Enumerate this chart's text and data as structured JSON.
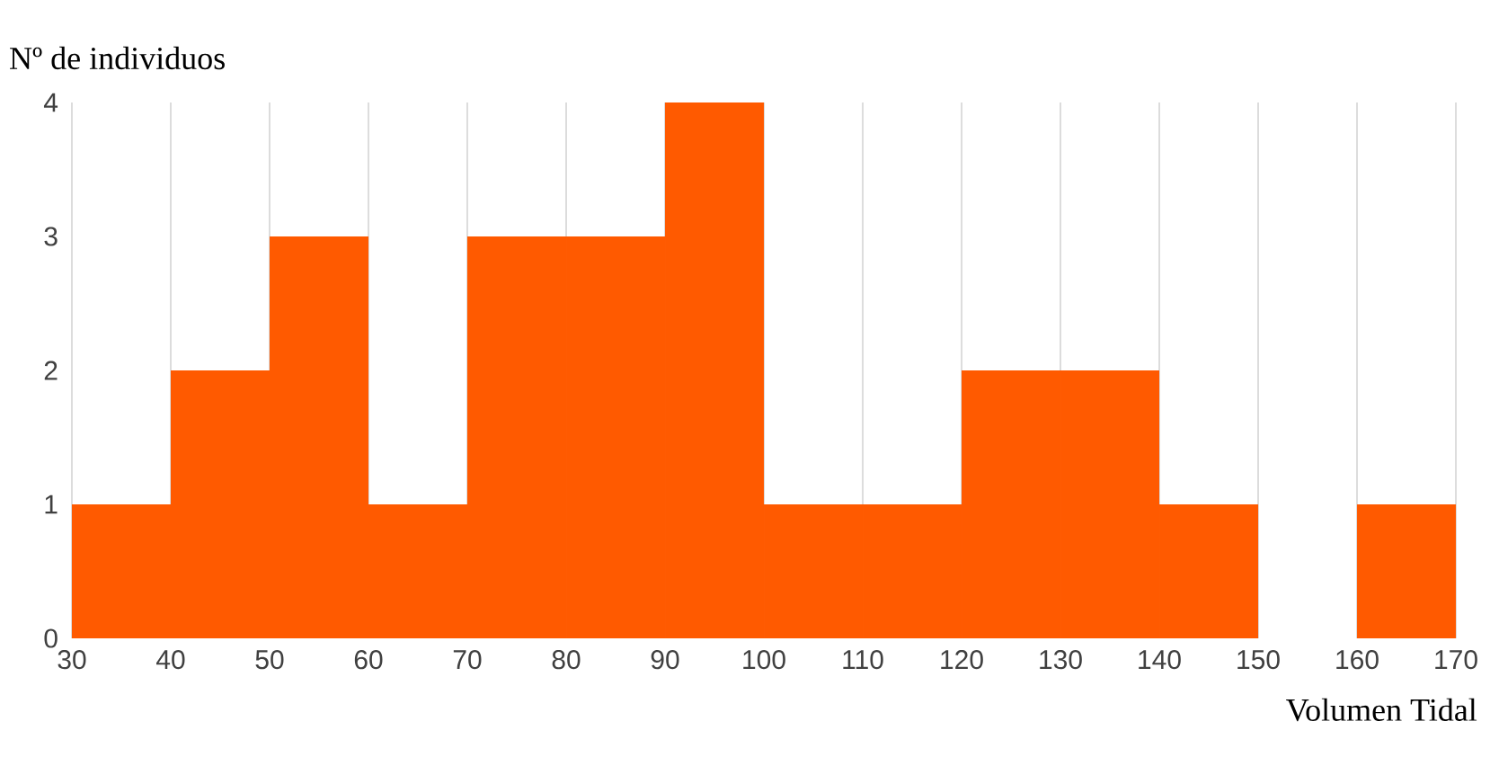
{
  "chart_data": {
    "type": "histogram",
    "ylabel": "Nº de individuos",
    "xlabel": "Volumen Tidal",
    "bins": [
      30,
      40,
      50,
      60,
      70,
      80,
      90,
      100,
      110,
      120,
      130,
      140,
      150,
      160,
      170
    ],
    "values": [
      1,
      2,
      3,
      1,
      3,
      3,
      4,
      1,
      1,
      2,
      2,
      1,
      0,
      1
    ],
    "color": "#ff5a00",
    "xlim": [
      30,
      170
    ],
    "ylim": [
      0,
      4
    ],
    "xticks": [
      30,
      40,
      50,
      60,
      70,
      80,
      90,
      100,
      110,
      120,
      130,
      140,
      150,
      160,
      170
    ],
    "yticks": [
      0,
      1,
      2,
      3,
      4
    ],
    "grid": "x"
  }
}
